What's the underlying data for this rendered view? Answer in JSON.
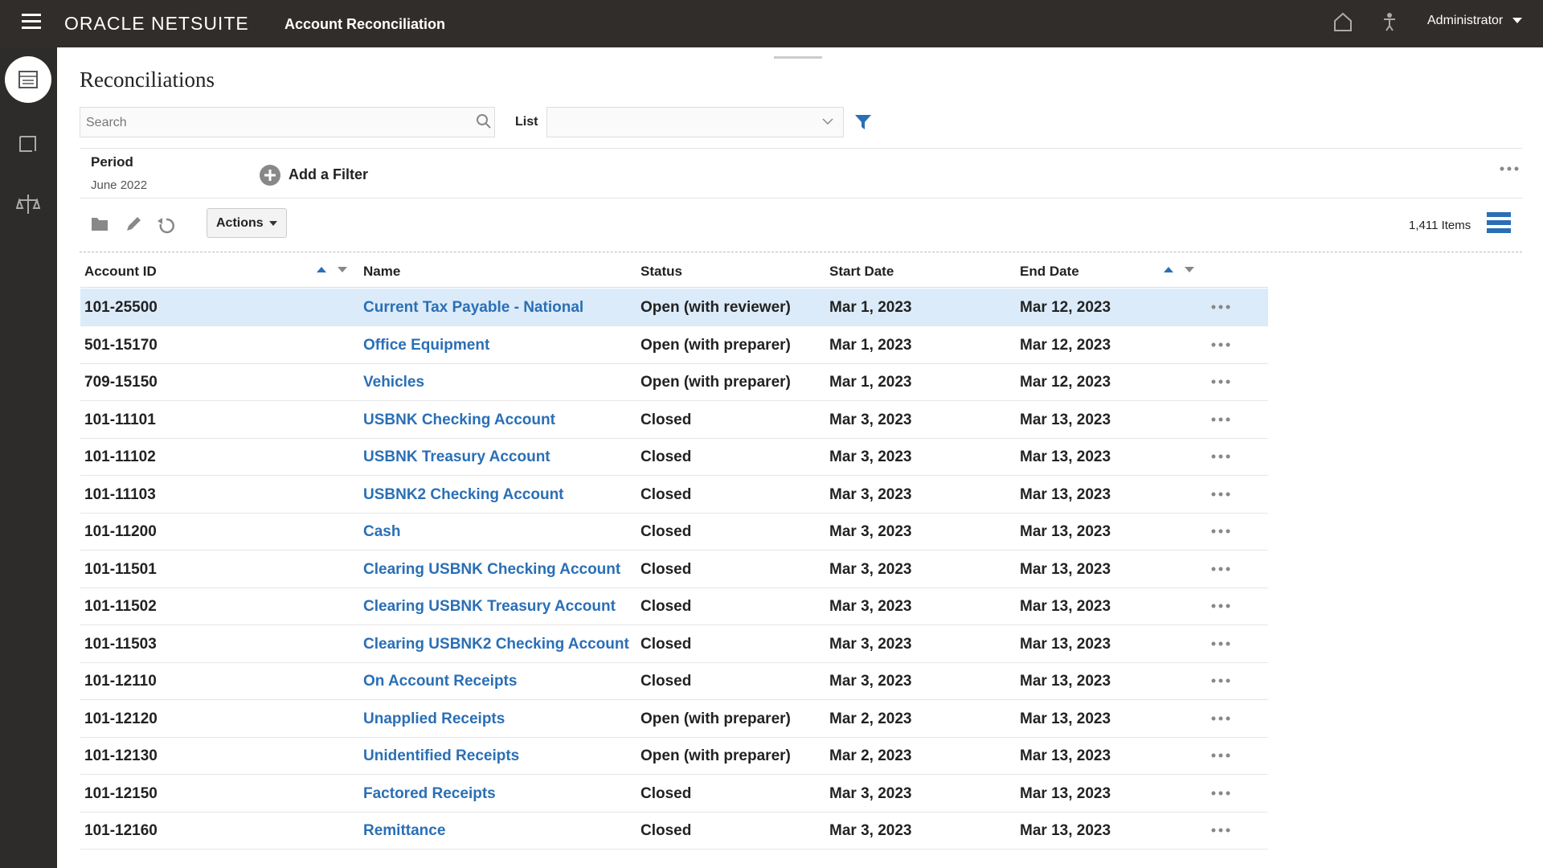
{
  "header": {
    "brand": "ORACLE NETSUITE",
    "app": "Account Reconciliation",
    "user": "Administrator"
  },
  "page": {
    "title": "Reconciliations",
    "search_placeholder": "Search",
    "list_label": "List",
    "period_label": "Period",
    "period_value": "June 2022",
    "add_filter": "Add a Filter",
    "actions": "Actions",
    "items": "1,411 Items"
  },
  "table": {
    "columns": [
      "Account ID",
      "Name",
      "Status",
      "Start Date",
      "End Date"
    ],
    "rows": [
      [
        "101-25500",
        "Current Tax Payable - National",
        "Open (with reviewer)",
        "Mar 1, 2023",
        "Mar 12, 2023"
      ],
      [
        "501-15170",
        "Office Equipment",
        "Open (with preparer)",
        "Mar 1, 2023",
        "Mar 12, 2023"
      ],
      [
        "709-15150",
        "Vehicles",
        "Open (with preparer)",
        "Mar 1, 2023",
        "Mar 12, 2023"
      ],
      [
        "101-11101",
        "USBNK Checking Account",
        "Closed",
        "Mar 3, 2023",
        "Mar 13, 2023"
      ],
      [
        "101-11102",
        "USBNK Treasury Account",
        "Closed",
        "Mar 3, 2023",
        "Mar 13, 2023"
      ],
      [
        "101-11103",
        "USBNK2 Checking Account",
        "Closed",
        "Mar 3, 2023",
        "Mar 13, 2023"
      ],
      [
        "101-11200",
        "Cash",
        "Closed",
        "Mar 3, 2023",
        "Mar 13, 2023"
      ],
      [
        "101-11501",
        "Clearing USBNK Checking Account",
        "Closed",
        "Mar 3, 2023",
        "Mar 13, 2023"
      ],
      [
        "101-11502",
        "Clearing USBNK Treasury Account",
        "Closed",
        "Mar 3, 2023",
        "Mar 13, 2023"
      ],
      [
        "101-11503",
        "Clearing USBNK2 Checking Account",
        "Closed",
        "Mar 3, 2023",
        "Mar 13, 2023"
      ],
      [
        "101-12110",
        "On Account Receipts",
        "Closed",
        "Mar 3, 2023",
        "Mar 13, 2023"
      ],
      [
        "101-12120",
        "Unapplied Receipts",
        "Open (with preparer)",
        "Mar 2, 2023",
        "Mar 13, 2023"
      ],
      [
        "101-12130",
        "Unidentified Receipts",
        "Open (with preparer)",
        "Mar 2, 2023",
        "Mar 13, 2023"
      ],
      [
        "101-12150",
        "Factored Receipts",
        "Closed",
        "Mar 3, 2023",
        "Mar 13, 2023"
      ],
      [
        "101-12160",
        "Remittance",
        "Closed",
        "Mar 3, 2023",
        "Mar 13, 2023"
      ]
    ]
  }
}
